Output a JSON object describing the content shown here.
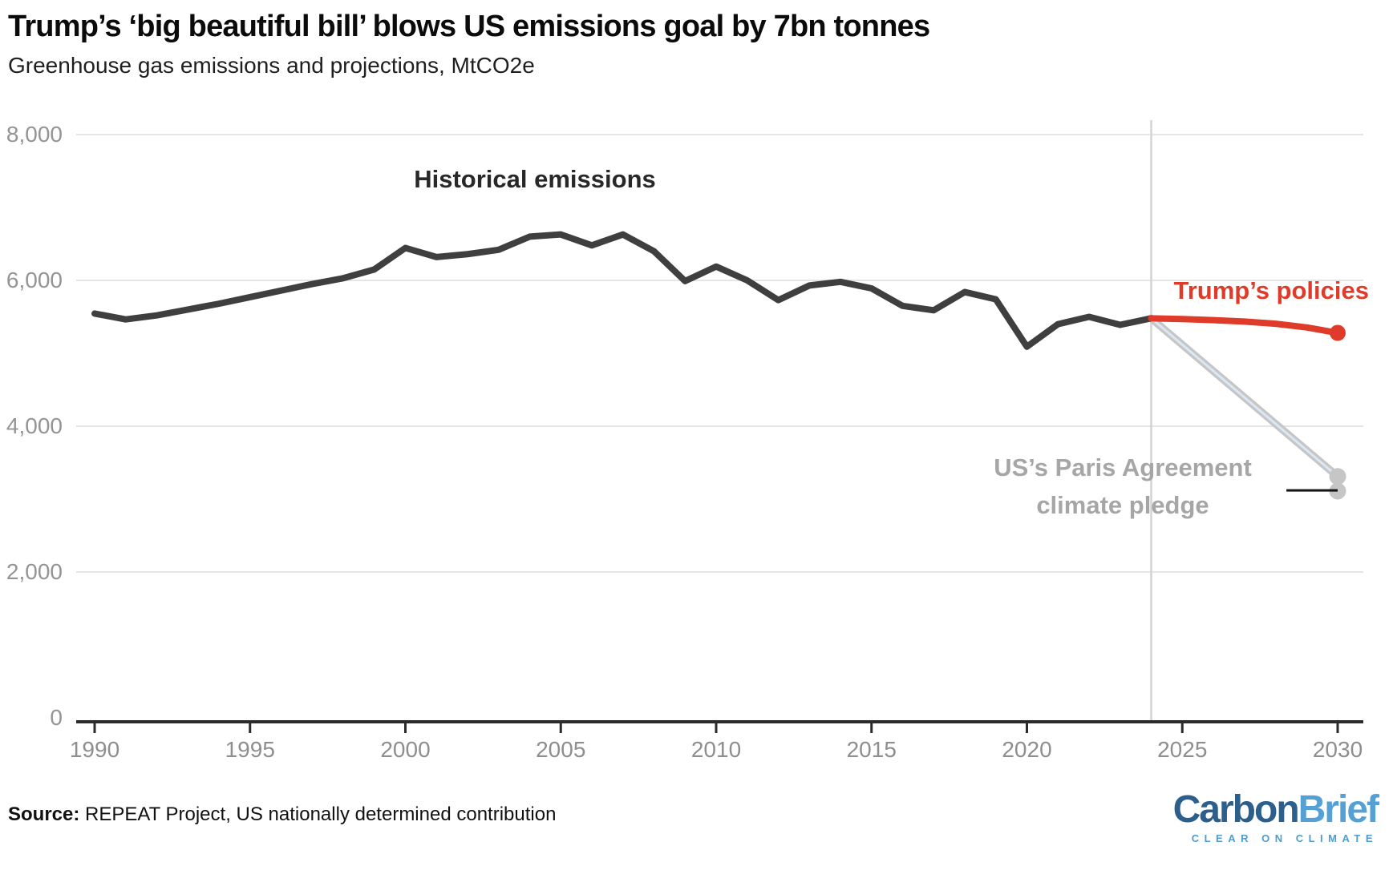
{
  "header": {
    "title": "Trump’s ‘big beautiful bill’ blows US emissions goal by 7bn tonnes",
    "subtitle": "Greenhouse gas emissions and projections, MtCO2e"
  },
  "chart_data": {
    "type": "line",
    "title": "Trump’s ‘big beautiful bill’ blows US emissions goal by 7bn tonnes",
    "subtitle": "Greenhouse gas emissions and projections, MtCO2e",
    "units": "MtCO2e",
    "xlabel": "",
    "ylabel": "MtCO2e",
    "xlim": [
      1988.5,
      2030.8
    ],
    "ylim": [
      0,
      8200
    ],
    "grid": "horizontal",
    "legend": "inline-annotations",
    "x_ticks": [
      1990,
      1995,
      2000,
      2005,
      2010,
      2015,
      2020,
      2025,
      2030
    ],
    "y_ticks": [
      {
        "value": 0,
        "label": "0"
      },
      {
        "value": 2000,
        "label": "2,000"
      },
      {
        "value": 4000,
        "label": "4,000"
      },
      {
        "value": 6000,
        "label": "6,000"
      },
      {
        "value": 8000,
        "label": "8,000"
      }
    ],
    "vline_year": 2024,
    "labels": {
      "historical": "Historical emissions",
      "trump": "Trump’s policies",
      "paris_line1": "US’s Paris Agreement",
      "paris_line2": "climate pledge"
    },
    "series": [
      {
        "name": "Historical emissions",
        "color": "#3F3F3F",
        "x": [
          1990,
          1991,
          1992,
          1993,
          1994,
          1995,
          1996,
          1997,
          1998,
          1999,
          2000,
          2001,
          2002,
          2003,
          2004,
          2005,
          2006,
          2007,
          2008,
          2009,
          2010,
          2011,
          2012,
          2013,
          2014,
          2015,
          2016,
          2017,
          2018,
          2019,
          2020,
          2021,
          2022,
          2023,
          2024
        ],
        "values": [
          5545,
          5465,
          5520,
          5600,
          5680,
          5770,
          5860,
          5950,
          6030,
          6150,
          6445,
          6320,
          6360,
          6420,
          6600,
          6630,
          6480,
          6630,
          6400,
          5990,
          6190,
          6000,
          5730,
          5930,
          5980,
          5890,
          5650,
          5590,
          5840,
          5740,
          5090,
          5400,
          5500,
          5390,
          5480
        ]
      },
      {
        "name": "Trump’s policies",
        "color": "#DE3B2B",
        "x": [
          2024,
          2025,
          2026,
          2027,
          2028,
          2029,
          2030
        ],
        "values": [
          5480,
          5470,
          5455,
          5435,
          5405,
          5355,
          5280
        ],
        "end_dot_value": 5280
      },
      {
        "name": "US’s Paris Agreement climate pledge",
        "color": "#C6C6C6",
        "core_color": "#DAE8F5",
        "x": [
          2024,
          2030
        ],
        "values": [
          5480,
          3310
        ],
        "end_dot_values": [
          3310,
          3110
        ]
      }
    ],
    "target_marker": {
      "year_start": 2028.35,
      "year_end": 2030,
      "value": 3120,
      "color": "#151515"
    },
    "colors": {
      "grid": "#E5E5E5",
      "vline": "#D4D4D4",
      "axis": "#2B2B2B",
      "x_tick_label": "#8E8E8E",
      "y_tick_label": "#949494",
      "historical_label": "#282828",
      "paris_label": "#A6A6A6"
    }
  },
  "footer": {
    "source_label": "Source:",
    "source_text": " REPEAT Project, US nationally determined contribution",
    "logo": {
      "carbon": "Carbon",
      "brief": "Brief",
      "tagline": "CLEAR ON CLIMATE",
      "carbon_color": "#2D5F8D",
      "brief_color": "#55A1D6",
      "tagline_color": "#4E9CD0"
    }
  }
}
